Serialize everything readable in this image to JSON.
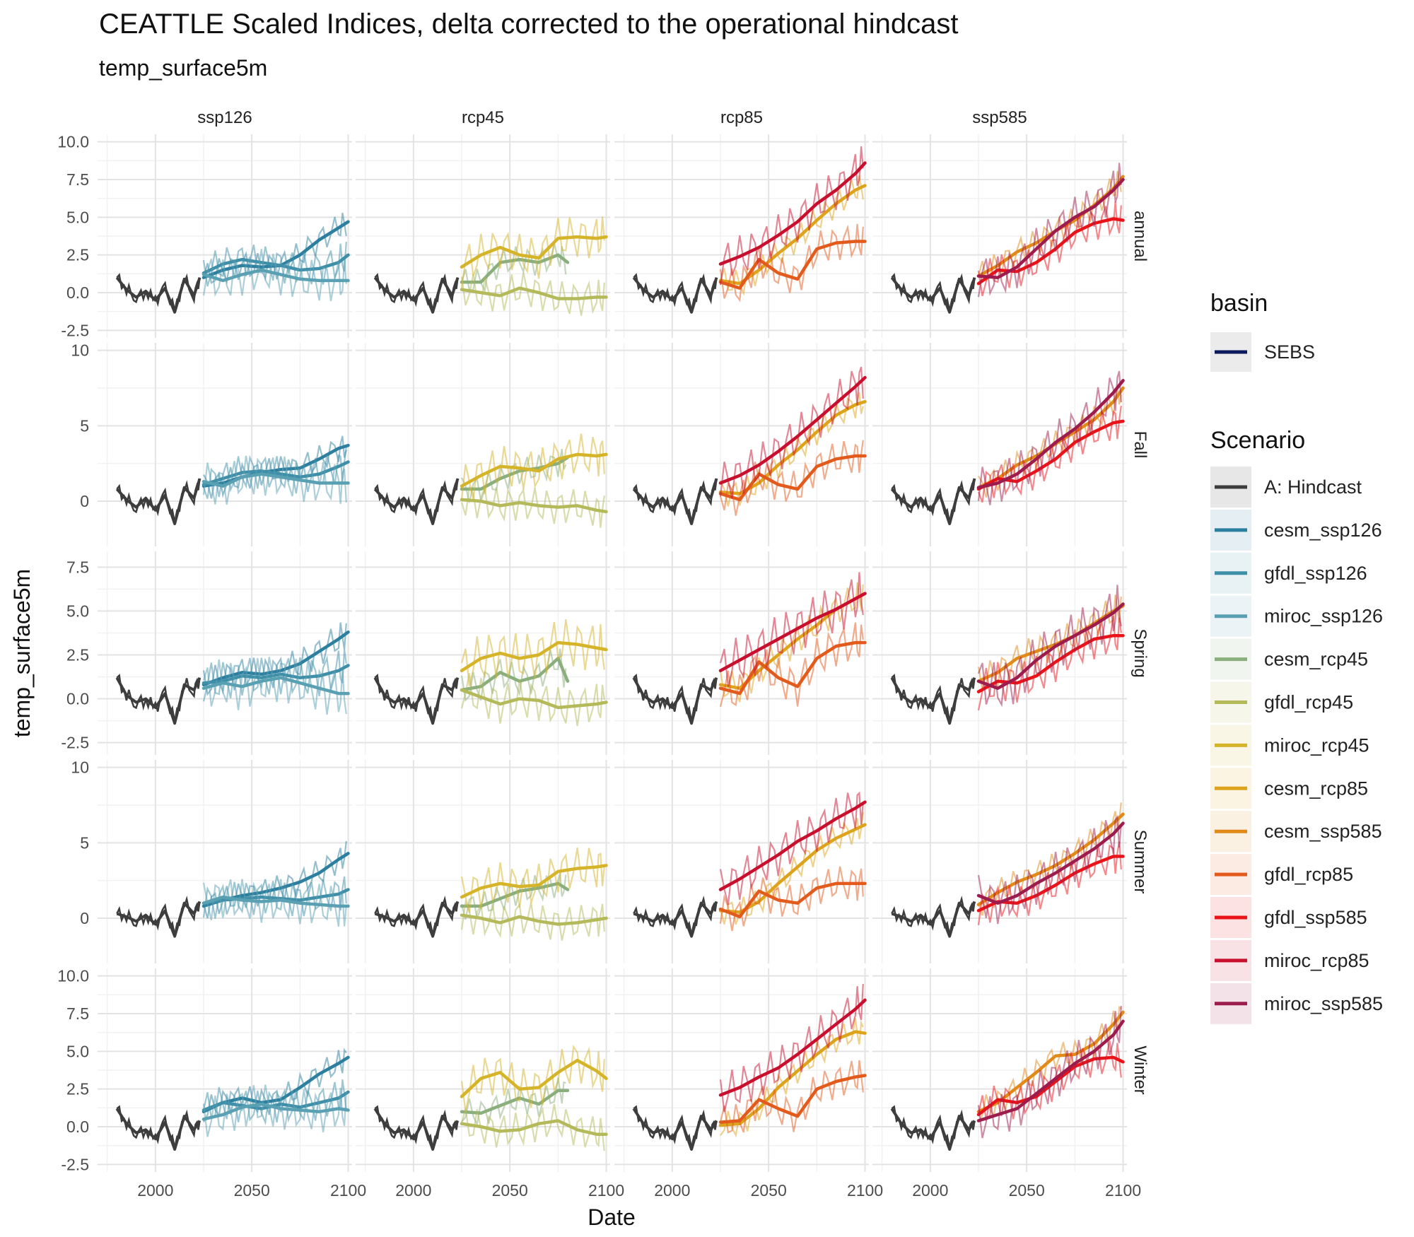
{
  "chart_data": {
    "type": "line",
    "title": "CEATTLE Scaled Indices, delta corrected to the operational hindcast",
    "subtitle": "temp_surface5m",
    "xlabel": "Date",
    "ylabel": "temp_surface5m",
    "xlim": [
      1970,
      2102
    ],
    "x_ticks": [
      "2000",
      "2050",
      "2100"
    ],
    "columns": [
      "ssp126",
      "rcp45",
      "rcp85",
      "ssp585"
    ],
    "rows": [
      {
        "label": "annual",
        "ylim": [
          -3.0,
          10.5
        ],
        "ticks": [
          "10.0",
          "7.5",
          "5.0",
          "2.5",
          "0.0",
          "-2.5"
        ],
        "tick_values": [
          10,
          7.5,
          5,
          2.5,
          0,
          -2.5
        ]
      },
      {
        "label": "Fall",
        "ylim": [
          -3.0,
          10.5
        ],
        "ticks": [
          "10",
          "5",
          "0"
        ],
        "tick_values": [
          10,
          5,
          0
        ]
      },
      {
        "label": "Spring",
        "ylim": [
          -3.2,
          8.4
        ],
        "ticks": [
          "7.5",
          "5.0",
          "2.5",
          "0.0",
          "-2.5"
        ],
        "tick_values": [
          7.5,
          5,
          2.5,
          0,
          -2.5
        ]
      },
      {
        "label": "Summer",
        "ylim": [
          -3.0,
          10.5
        ],
        "ticks": [
          "10",
          "5",
          "0"
        ],
        "tick_values": [
          10,
          5,
          0
        ]
      },
      {
        "label": "Winter",
        "ylim": [
          -3.0,
          10.5
        ],
        "ticks": [
          "10.0",
          "7.5",
          "5.0",
          "2.5",
          "0.0",
          "-2.5"
        ],
        "tick_values": [
          10,
          7.5,
          5,
          2.5,
          0,
          -2.5
        ]
      }
    ],
    "legend_basin": {
      "title": "basin",
      "items": [
        {
          "label": "SEBS",
          "color": "#0b1a5c"
        }
      ]
    },
    "legend_scenario": {
      "title": "Scenario",
      "items": [
        {
          "label": "A: Hindcast",
          "color": "#3d3d3d"
        },
        {
          "label": "cesm_ssp126",
          "color": "#2c7f9e"
        },
        {
          "label": "gfdl_ssp126",
          "color": "#3f8fa8"
        },
        {
          "label": "miroc_ssp126",
          "color": "#5aa0b3"
        },
        {
          "label": "cesm_rcp45",
          "color": "#8aae7c"
        },
        {
          "label": "gfdl_rcp45",
          "color": "#b4b95a"
        },
        {
          "label": "miroc_rcp45",
          "color": "#d6b42a"
        },
        {
          "label": "cesm_rcp85",
          "color": "#dea31c"
        },
        {
          "label": "cesm_ssp585",
          "color": "#e08a1a"
        },
        {
          "label": "gfdl_rcp85",
          "color": "#e25a1c"
        },
        {
          "label": "gfdl_ssp585",
          "color": "#e8141a"
        },
        {
          "label": "miroc_rcp85",
          "color": "#c8102e"
        },
        {
          "label": "miroc_ssp585",
          "color": "#9c1c4e"
        }
      ]
    },
    "hindcast": {
      "series": "A: Hindcast",
      "x": [
        1980,
        1985,
        1990,
        1995,
        2000,
        2005,
        2010,
        2015,
        2020,
        2023
      ],
      "values": {
        "annual": [
          1.0,
          0.2,
          -0.3,
          0.1,
          -0.5,
          0.3,
          -1.3,
          0.9,
          -0.2,
          1.0
        ],
        "Fall": [
          0.8,
          0.1,
          -0.4,
          0.2,
          -0.6,
          0.4,
          -1.5,
          0.9,
          0.2,
          1.5
        ],
        "Spring": [
          1.2,
          0.2,
          -0.2,
          0.0,
          -0.5,
          0.3,
          -1.4,
          0.8,
          0.5,
          1.2
        ],
        "Summer": [
          0.3,
          0.1,
          -0.2,
          0.2,
          -0.4,
          0.5,
          -1.2,
          1.0,
          0.3,
          1.1
        ],
        "Winter": [
          1.2,
          0.2,
          -0.4,
          -0.2,
          -0.8,
          0.3,
          -1.5,
          0.7,
          -0.2,
          0.4
        ]
      }
    },
    "projections": {
      "x": [
        2025,
        2035,
        2045,
        2055,
        2065,
        2075,
        2085,
        2095,
        2100
      ],
      "panels": {
        "ssp126": {
          "cesm_ssp126": {
            "annual": [
              1.0,
              1.5,
              1.8,
              1.7,
              1.8,
              2.5,
              3.5,
              4.3,
              4.7
            ],
            "Fall": [
              1.0,
              1.2,
              1.6,
              1.9,
              2.1,
              2.2,
              2.8,
              3.5,
              3.7
            ],
            "Spring": [
              0.8,
              1.2,
              1.5,
              1.4,
              1.6,
              2.0,
              2.7,
              3.4,
              3.8
            ],
            "Summer": [
              0.8,
              1.2,
              1.5,
              1.7,
              2.0,
              2.4,
              3.0,
              3.9,
              4.3
            ],
            "Winter": [
              1.0,
              1.6,
              1.9,
              1.6,
              1.8,
              2.6,
              3.5,
              4.2,
              4.6
            ]
          },
          "gfdl_ssp126": {
            "annual": [
              1.3,
              1.9,
              2.2,
              2.0,
              1.8,
              1.5,
              1.6,
              2.0,
              2.5
            ],
            "Fall": [
              1.1,
              1.5,
              1.9,
              2.0,
              1.8,
              1.6,
              1.8,
              2.3,
              2.6
            ],
            "Spring": [
              0.9,
              1.0,
              1.3,
              1.2,
              1.4,
              1.2,
              1.3,
              1.6,
              1.9
            ],
            "Summer": [
              1.0,
              1.2,
              1.3,
              1.4,
              1.3,
              1.2,
              1.4,
              1.6,
              1.9
            ],
            "Winter": [
              1.1,
              1.6,
              1.4,
              1.2,
              1.5,
              1.3,
              1.6,
              1.9,
              2.3
            ]
          },
          "miroc_ssp126": {
            "annual": [
              1.2,
              0.8,
              1.2,
              1.5,
              1.2,
              0.9,
              0.8,
              0.8,
              0.8
            ],
            "Fall": [
              1.3,
              1.0,
              1.6,
              1.8,
              1.6,
              1.4,
              1.2,
              1.2,
              1.2
            ],
            "Spring": [
              0.6,
              0.9,
              0.7,
              1.0,
              1.2,
              0.9,
              0.6,
              0.3,
              0.3
            ],
            "Summer": [
              1.0,
              1.4,
              1.2,
              1.1,
              1.2,
              1.0,
              0.9,
              0.8,
              0.8
            ],
            "Winter": [
              0.5,
              0.8,
              1.3,
              1.5,
              1.2,
              1.1,
              1.0,
              1.2,
              1.1
            ]
          }
        },
        "rcp45": {
          "cesm_rcp45": {
            "annual": [
              0.7,
              0.7,
              2.0,
              2.2,
              2.0,
              2.5,
              2.0
            ],
            "Fall": [
              0.8,
              0.8,
              1.5,
              2.0,
              2.2,
              2.5,
              2.9
            ],
            "Spring": [
              0.5,
              0.7,
              1.5,
              1.0,
              1.3,
              2.3,
              1.0
            ],
            "Summer": [
              0.8,
              0.8,
              1.3,
              1.8,
              2.0,
              2.3,
              1.9
            ],
            "Winter": [
              1.0,
              0.9,
              1.4,
              1.9,
              1.5,
              2.4,
              2.4
            ],
            "x": [
              2025,
              2035,
              2045,
              2055,
              2065,
              2075,
              2080
            ]
          },
          "gfdl_rcp45": {
            "annual": [
              0.2,
              0.0,
              -0.2,
              0.3,
              0.0,
              -0.4,
              -0.4,
              -0.3,
              -0.3
            ],
            "Fall": [
              0.1,
              0.0,
              -0.3,
              -0.1,
              -0.3,
              -0.4,
              -0.3,
              -0.6,
              -0.7
            ],
            "Spring": [
              0.5,
              0.1,
              -0.3,
              0.0,
              -0.1,
              -0.5,
              -0.4,
              -0.3,
              -0.2
            ],
            "Summer": [
              0.2,
              0.0,
              -0.3,
              0.1,
              -0.2,
              -0.4,
              -0.3,
              -0.1,
              0.0
            ],
            "Winter": [
              0.2,
              0.0,
              -0.3,
              -0.2,
              0.2,
              0.4,
              -0.2,
              -0.5,
              -0.5
            ]
          },
          "miroc_rcp45": {
            "annual": [
              1.7,
              2.5,
              3.0,
              2.5,
              2.3,
              3.6,
              3.7,
              3.6,
              3.7
            ],
            "Fall": [
              1.0,
              1.7,
              2.3,
              2.2,
              2.0,
              2.8,
              3.1,
              3.0,
              3.1
            ],
            "Spring": [
              1.6,
              2.3,
              2.6,
              2.3,
              2.5,
              3.2,
              3.1,
              2.9,
              2.8
            ],
            "Summer": [
              1.4,
              2.0,
              2.3,
              2.1,
              2.2,
              3.1,
              3.3,
              3.4,
              3.5
            ],
            "Winter": [
              2.0,
              3.2,
              3.6,
              2.5,
              2.6,
              3.6,
              4.4,
              3.7,
              3.2
            ]
          }
        },
        "rcp85": {
          "cesm_rcp85": {
            "annual": [
              0.8,
              0.6,
              1.5,
              2.6,
              3.6,
              4.8,
              5.9,
              6.8,
              7.1
            ],
            "Fall": [
              0.6,
              0.5,
              1.2,
              2.4,
              3.4,
              4.6,
              5.7,
              6.4,
              6.6
            ],
            "Spring": [
              0.8,
              0.6,
              1.6,
              2.5,
              3.4,
              4.2,
              5.1,
              5.7,
              6.0
            ],
            "Summer": [
              0.5,
              0.4,
              1.1,
              2.3,
              3.4,
              4.5,
              5.3,
              5.9,
              6.2
            ],
            "Winter": [
              0.1,
              0.2,
              1.2,
              2.6,
              3.7,
              4.8,
              5.8,
              6.3,
              6.2
            ]
          },
          "gfdl_rcp85": {
            "annual": [
              0.7,
              0.3,
              2.2,
              1.3,
              0.9,
              2.9,
              3.3,
              3.4,
              3.4
            ],
            "Fall": [
              0.5,
              0.1,
              1.8,
              1.1,
              0.8,
              2.3,
              2.8,
              3.0,
              3.0
            ],
            "Spring": [
              0.6,
              0.3,
              2.1,
              1.2,
              0.7,
              2.3,
              3.0,
              3.2,
              3.2
            ],
            "Summer": [
              0.6,
              0.1,
              1.8,
              1.2,
              1.0,
              2.0,
              2.3,
              2.3,
              2.3
            ],
            "Winter": [
              0.3,
              0.4,
              1.8,
              1.2,
              0.7,
              2.5,
              3.0,
              3.3,
              3.4
            ]
          },
          "miroc_rcp85": {
            "annual": [
              1.9,
              2.4,
              3.0,
              3.8,
              4.7,
              5.9,
              6.8,
              7.9,
              8.6
            ],
            "Fall": [
              1.2,
              1.7,
              2.4,
              3.3,
              4.3,
              5.4,
              6.5,
              7.6,
              8.2
            ],
            "Spring": [
              1.6,
              2.2,
              2.8,
              3.4,
              4.0,
              4.6,
              5.1,
              5.7,
              6.0
            ],
            "Summer": [
              1.9,
              2.6,
              3.4,
              4.2,
              5.1,
              5.8,
              6.6,
              7.3,
              7.7
            ],
            "Winter": [
              2.1,
              2.6,
              3.3,
              3.9,
              4.8,
              5.8,
              6.8,
              7.8,
              8.4
            ]
          }
        },
        "ssp585": {
          "cesm_ssp585": {
            "annual": [
              1.1,
              1.8,
              2.7,
              3.3,
              4.1,
              4.8,
              5.8,
              6.9,
              7.7
            ],
            "Fall": [
              0.9,
              1.5,
              2.4,
              3.0,
              3.8,
              4.6,
              5.4,
              6.6,
              7.5
            ],
            "Spring": [
              1.0,
              1.5,
              2.3,
              2.7,
              3.1,
              3.6,
              4.3,
              5.0,
              5.3
            ],
            "Summer": [
              0.9,
              1.7,
              2.4,
              2.9,
              3.5,
              4.3,
              5.2,
              6.3,
              6.9
            ],
            "Winter": [
              1.0,
              1.6,
              2.6,
              3.6,
              4.7,
              4.8,
              5.5,
              6.8,
              7.6
            ]
          },
          "gfdl_ssp585": {
            "annual": [
              0.6,
              1.5,
              1.4,
              2.0,
              2.9,
              4.0,
              4.6,
              4.9,
              4.8
            ],
            "Fall": [
              0.8,
              1.5,
              1.3,
              2.0,
              2.8,
              3.9,
              4.6,
              5.2,
              5.3
            ],
            "Spring": [
              0.4,
              1.0,
              0.9,
              1.3,
              2.1,
              2.8,
              3.4,
              3.6,
              3.6
            ],
            "Summer": [
              0.5,
              1.1,
              1.0,
              1.5,
              2.2,
              3.0,
              3.6,
              4.1,
              4.1
            ],
            "Winter": [
              0.8,
              1.8,
              1.6,
              2.0,
              3.0,
              4.0,
              4.5,
              4.6,
              4.3
            ]
          },
          "miroc_ssp585": {
            "annual": [
              1.1,
              1.0,
              1.7,
              2.9,
              4.1,
              5.0,
              5.7,
              6.8,
              7.5
            ],
            "Fall": [
              0.9,
              1.2,
              1.8,
              2.8,
              3.9,
              4.8,
              5.9,
              7.2,
              8.0
            ],
            "Spring": [
              1.0,
              0.6,
              1.2,
              2.2,
              3.0,
              3.6,
              4.2,
              4.9,
              5.4
            ],
            "Summer": [
              1.5,
              1.0,
              1.5,
              2.3,
              3.0,
              3.8,
              4.6,
              5.6,
              6.3
            ],
            "Winter": [
              0.4,
              0.8,
              1.2,
              2.2,
              3.2,
              4.2,
              5.0,
              6.1,
              7.0
            ]
          }
        }
      }
    }
  }
}
